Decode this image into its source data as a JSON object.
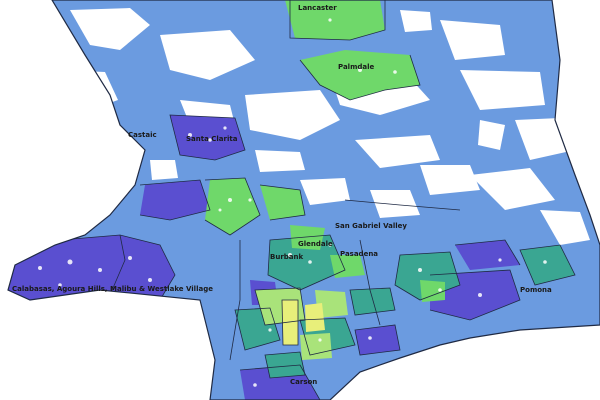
{
  "colors": {
    "background": "#ffffff",
    "light_blue": "#6b9be0",
    "purple_blue": "#5a4fd0",
    "teal": "#3aa692",
    "green": "#6fd86a",
    "light_green": "#a9e37a",
    "yellow": "#e8ef7a",
    "boundary": "#1f2a44"
  },
  "labels": {
    "lancaster": "Lancaster",
    "palmdale": "Palmdale",
    "castaic": "Castaic",
    "santa_clarita": "Santa Clarita",
    "san_gabriel_valley": "San Gabriel Valley",
    "glendale": "Glendale",
    "burbank": "Burbank",
    "pasadena": "Pasadena",
    "pomona": "Pomona",
    "calabasas_area": "Calabasas, Agoura Hills, Malibu & Westlake Village",
    "carson": "Carson"
  }
}
